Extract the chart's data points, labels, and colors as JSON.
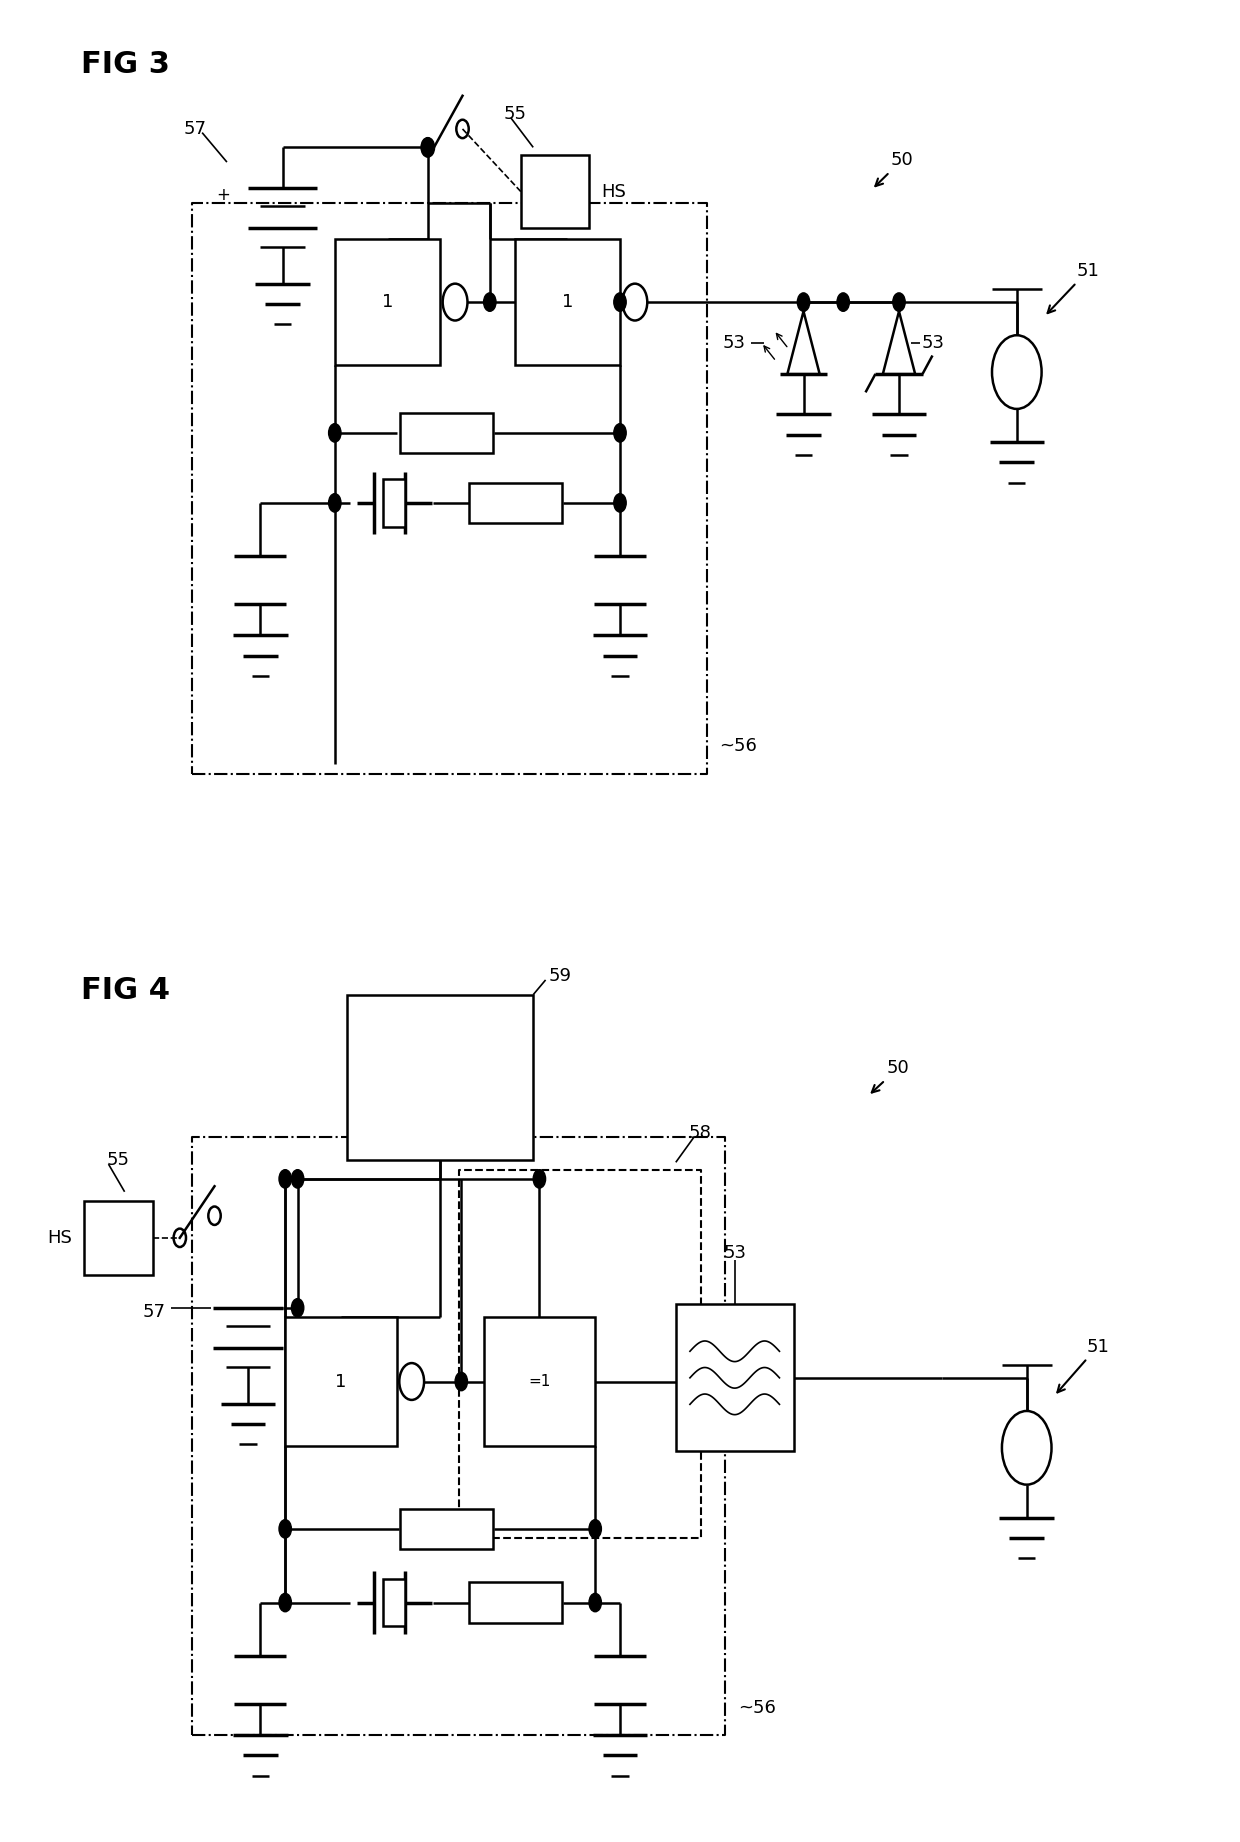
{
  "fig_title_1": "FIG 3",
  "fig_title_2": "FIG 4",
  "background_color": "#ffffff",
  "line_color": "#000000",
  "fig_width": 12.4,
  "fig_height": 18.42,
  "dpi": 100
}
